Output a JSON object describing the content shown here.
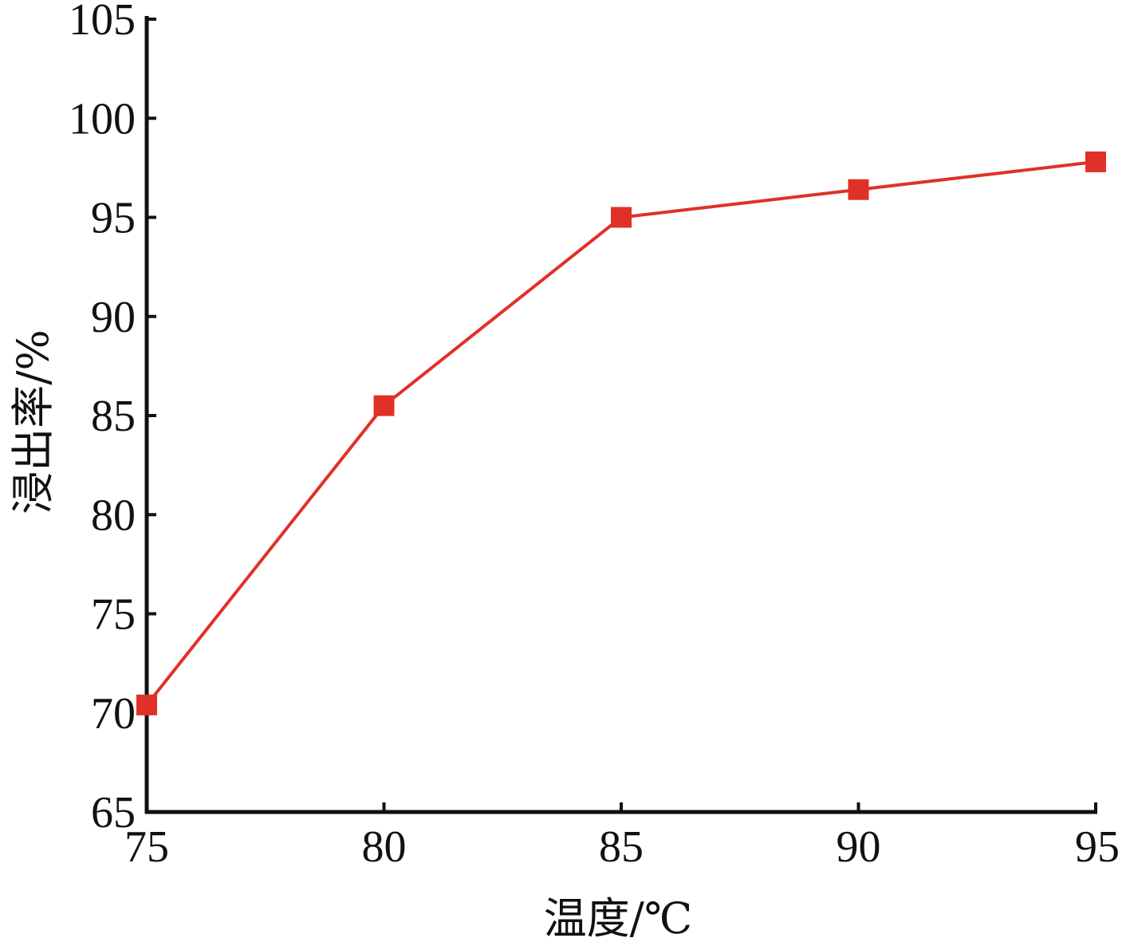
{
  "chart_data": {
    "type": "line",
    "title": "",
    "xlabel": "温度/℃",
    "ylabel": "浸出率/%",
    "x": [
      75,
      80,
      85,
      90,
      95
    ],
    "series": [
      {
        "values": [
          70.4,
          85.5,
          95.0,
          96.4,
          97.8
        ],
        "color": "#e03128",
        "marker": "square"
      }
    ],
    "xlim": [
      75,
      95
    ],
    "ylim": [
      65,
      105
    ],
    "xticks": [
      "75",
      "80",
      "85",
      "90",
      "95"
    ],
    "yticks": [
      "65",
      "70",
      "75",
      "80",
      "85",
      "90",
      "95",
      "100",
      "105"
    ],
    "grid": false,
    "legend": "none"
  }
}
